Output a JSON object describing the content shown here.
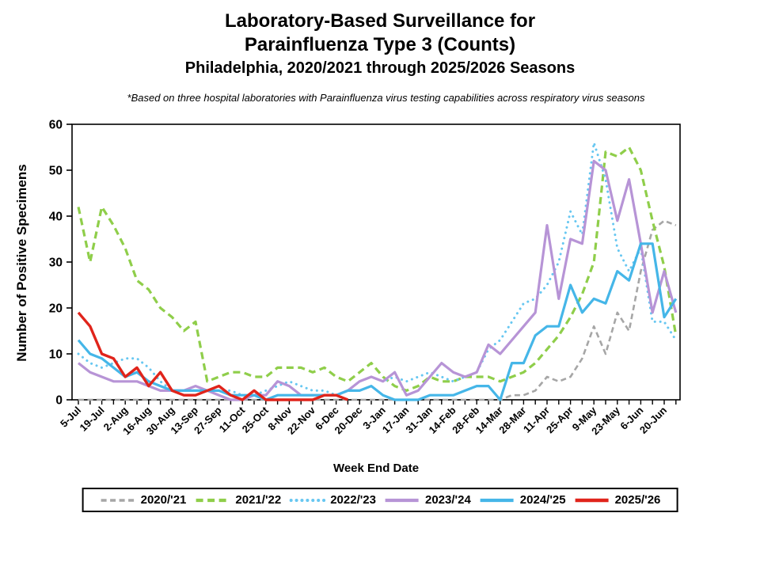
{
  "title": {
    "line1": "Laboratory-Based Surveillance for",
    "line2": "Parainfluenza Type 3 (Counts)",
    "line3": "Philadelphia, 2020/2021 through 2025/2026 Seasons"
  },
  "subtitle": "*Based on three hospital laboratories with Parainfluenza virus testing capabilities across respiratory virus seasons",
  "chart_data": {
    "type": "line",
    "title": "Laboratory-Based Surveillance for Parainfluenza Type 3 (Counts)",
    "xlabel": "Week End Date",
    "ylabel": "Number of Positive Specimens",
    "ylim": [
      0,
      60
    ],
    "ytick_step": 10,
    "grid": false,
    "legend_position": "bottom",
    "weeks": 52,
    "x_tick_labels": [
      "5-Jul",
      "19-Jul",
      "2-Aug",
      "16-Aug",
      "30-Aug",
      "13-Sep",
      "27-Sep",
      "11-Oct",
      "25-Oct",
      "8-Nov",
      "22-Nov",
      "6-Dec",
      "20-Dec",
      "3-Jan",
      "17-Jan",
      "31-Jan",
      "14-Feb",
      "28-Feb",
      "14-Mar",
      "28-Mar",
      "11-Apr",
      "25-Apr",
      "9-May",
      "23-May",
      "6-Jun",
      "20-Jun"
    ],
    "series": [
      {
        "name": "2020/'21",
        "color": "#a6a6a6",
        "style": "dashed",
        "values": [
          0,
          0,
          0,
          0,
          0,
          0,
          0,
          0,
          0,
          0,
          0,
          0,
          0,
          0,
          0,
          0,
          0,
          0,
          0,
          0,
          0,
          0,
          0,
          0,
          0,
          0,
          0,
          0,
          0,
          0,
          0,
          0,
          0,
          0,
          0,
          0,
          0,
          1,
          1,
          2,
          5,
          4,
          5,
          9,
          16,
          10,
          19,
          15,
          28,
          37,
          39,
          38
        ]
      },
      {
        "name": "2021/'22",
        "color": "#8fce4a",
        "style": "dashed",
        "values": [
          42,
          30,
          42,
          38,
          33,
          26,
          24,
          20,
          18,
          15,
          17,
          4,
          5,
          6,
          6,
          5,
          5,
          7,
          7,
          7,
          6,
          7,
          5,
          4,
          6,
          8,
          5,
          3,
          2,
          3,
          5,
          4,
          4,
          5,
          5,
          5,
          4,
          5,
          6,
          8,
          11,
          14,
          18,
          23,
          30,
          54,
          53,
          55,
          50,
          39,
          29,
          14
        ]
      },
      {
        "name": "2022/'23",
        "color": "#67c7f1",
        "style": "dotted",
        "values": [
          10,
          8,
          7,
          8,
          9,
          9,
          7,
          4,
          2,
          2,
          2,
          2,
          2,
          2,
          1,
          1,
          2,
          3,
          4,
          3,
          2,
          2,
          1,
          2,
          4,
          5,
          4,
          5,
          4,
          5,
          6,
          5,
          4,
          5,
          6,
          11,
          13,
          17,
          21,
          22,
          25,
          30,
          41,
          36,
          56,
          48,
          33,
          28,
          33,
          17,
          17,
          13
        ]
      },
      {
        "name": "2023/'24",
        "color": "#b794d6",
        "style": "solid",
        "values": [
          8,
          6,
          5,
          4,
          4,
          4,
          3,
          2,
          2,
          2,
          3,
          2,
          1,
          0,
          0,
          1,
          1,
          4,
          3,
          1,
          1,
          1,
          1,
          2,
          4,
          5,
          4,
          6,
          1,
          2,
          5,
          8,
          6,
          5,
          6,
          12,
          10,
          13,
          16,
          19,
          38,
          22,
          35,
          34,
          52,
          50,
          39,
          48,
          34,
          19,
          28,
          19
        ]
      },
      {
        "name": "2024/'25",
        "color": "#45b6e8",
        "style": "solid",
        "values": [
          13,
          10,
          9,
          7,
          5,
          6,
          4,
          3,
          2,
          2,
          2,
          2,
          2,
          1,
          1,
          1,
          0,
          1,
          1,
          1,
          1,
          1,
          1,
          2,
          2,
          3,
          1,
          0,
          0,
          0,
          1,
          1,
          1,
          2,
          3,
          3,
          0,
          8,
          8,
          14,
          16,
          16,
          25,
          19,
          22,
          21,
          28,
          26,
          34,
          34,
          18,
          22
        ]
      },
      {
        "name": "2025/'26",
        "color": "#e0241b",
        "style": "solid",
        "values": [
          19,
          16,
          10,
          9,
          5,
          7,
          3,
          6,
          2,
          1,
          1,
          2,
          3,
          1,
          0,
          2,
          0,
          0,
          0,
          0,
          0,
          1,
          1,
          0
        ]
      }
    ]
  }
}
